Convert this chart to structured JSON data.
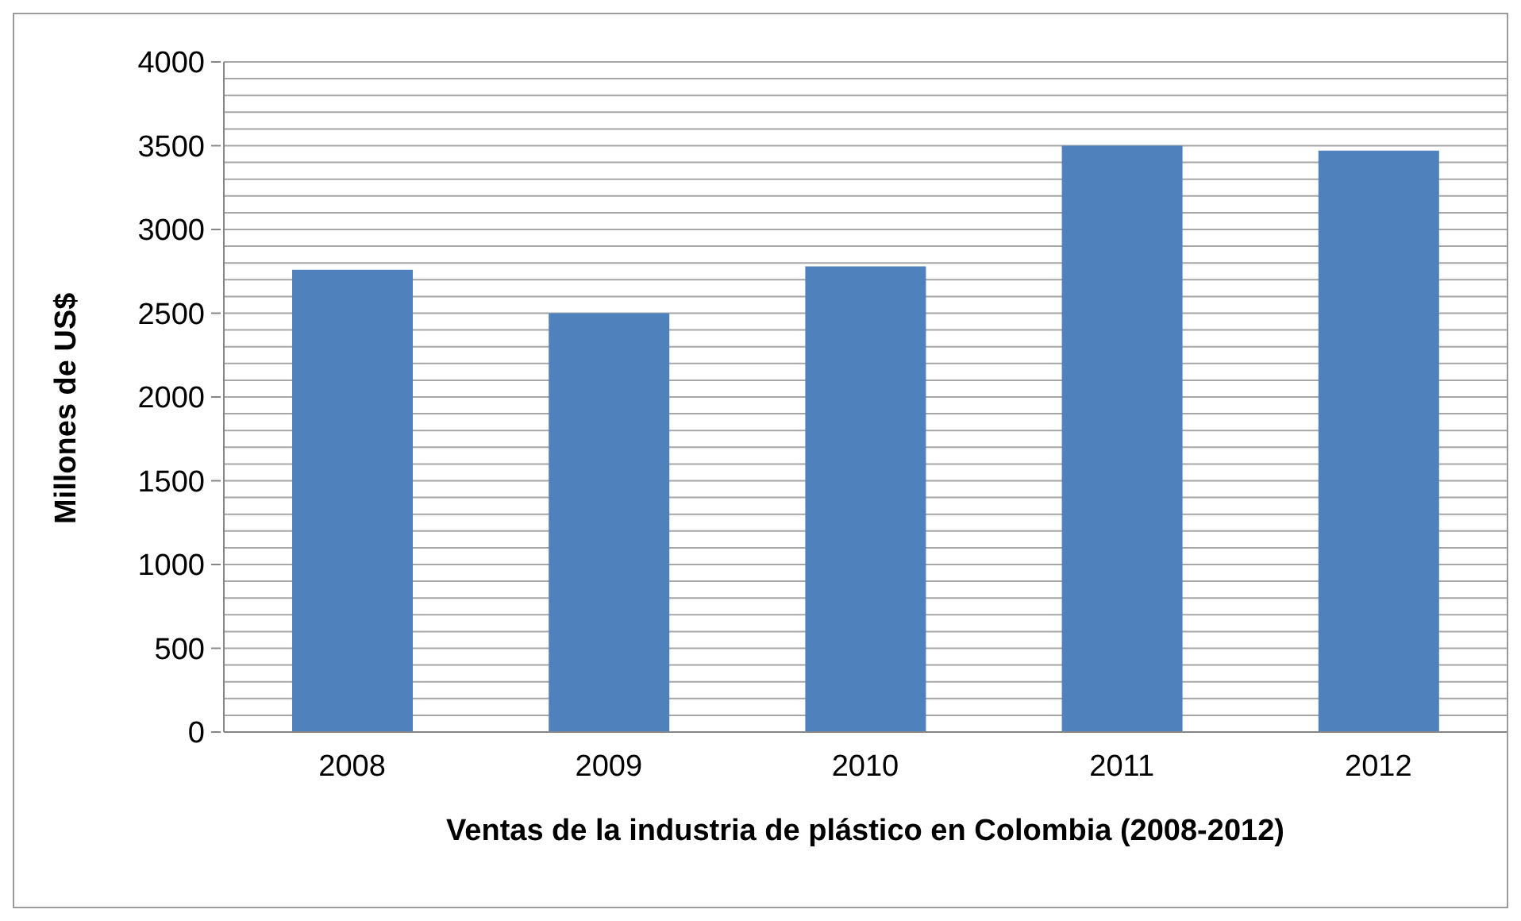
{
  "chart_data": {
    "type": "bar",
    "xlabel": "Ventas de la industria de plástico en Colombia (2008-2012)",
    "ylabel": "Millones de US$",
    "categories": [
      "2008",
      "2009",
      "2010",
      "2011",
      "2012"
    ],
    "values": [
      2760,
      2500,
      2780,
      3500,
      3470
    ],
    "color": "#4f81bd",
    "ylim": [
      0,
      4000
    ],
    "yticks": [
      0,
      {
        "value": 100,
        "label": null
      },
      {
        "value": 200,
        "label": null
      },
      {
        "value": 300,
        "label": null
      },
      {
        "value": 400,
        "label": null
      },
      500,
      {
        "value": 600,
        "label": null
      },
      {
        "value": 700,
        "label": null
      },
      {
        "value": 800,
        "label": null
      },
      {
        "value": 900,
        "label": null
      },
      1000,
      {
        "value": 1100,
        "label": null
      },
      {
        "value": 1200,
        "label": null
      },
      {
        "value": 1300,
        "label": null
      },
      {
        "value": 1400,
        "label": null
      },
      1500,
      {
        "value": 1600,
        "label": null
      },
      {
        "value": 1700,
        "label": null
      },
      {
        "value": 1800,
        "label": null
      },
      {
        "value": 1900,
        "label": null
      },
      2000,
      {
        "value": 2100,
        "label": null
      },
      {
        "value": 2200,
        "label": null
      },
      {
        "value": 2300,
        "label": null
      },
      {
        "value": 2400,
        "label": null
      },
      2500,
      {
        "value": 2600,
        "label": null
      },
      {
        "value": 2700,
        "label": null
      },
      {
        "value": 2800,
        "label": null
      },
      {
        "value": 2900,
        "label": null
      },
      3000,
      {
        "value": 3100,
        "label": null
      },
      {
        "value": 3200,
        "label": null
      },
      {
        "value": 3300,
        "label": null
      },
      {
        "value": 3400,
        "label": null
      },
      3500,
      {
        "value": 3600,
        "label": null
      },
      {
        "value": 3700,
        "label": null
      },
      {
        "value": 3800,
        "label": null
      },
      {
        "value": 3900,
        "label": null
      },
      4000
    ],
    "grid": "y",
    "legend": false
  }
}
